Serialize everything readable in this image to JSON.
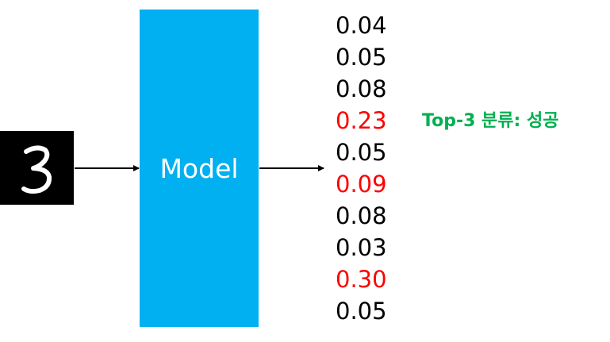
{
  "model": {
    "label": "Model"
  },
  "input": {
    "digit_icon": "handwritten-digit-3",
    "digit": "3"
  },
  "outputs": {
    "values": [
      "0.04",
      "0.05",
      "0.08",
      "0.23",
      "0.05",
      "0.09",
      "0.08",
      "0.03",
      "0.30",
      "0.05"
    ],
    "highlighted": [
      3,
      5,
      8
    ],
    "normal_color": "#000000",
    "highlight_color": "#ff0000"
  },
  "result": {
    "text": "Top-3 분류: 성공",
    "color": "#00b050"
  },
  "colors": {
    "model_box": "#00b0f0",
    "digit_background": "#000000",
    "digit_stroke": "#ffffff"
  }
}
